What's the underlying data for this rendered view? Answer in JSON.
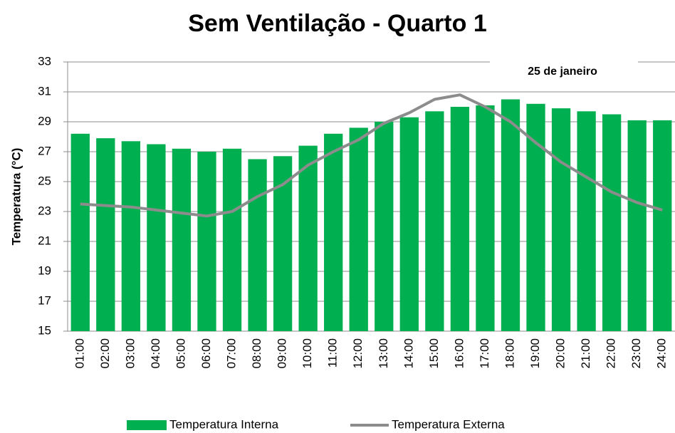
{
  "chart_data": {
    "type": "bar_line",
    "title": "Sem Ventilação - Quarto 1",
    "y_label": "Temperatura (°C)",
    "annotation": "25 de janeiro",
    "categories": [
      "01:00",
      "02:00",
      "03:00",
      "04:00",
      "05:00",
      "06:00",
      "07:00",
      "08:00",
      "09:00",
      "10:00",
      "11:00",
      "12:00",
      "13:00",
      "14:00",
      "15:00",
      "16:00",
      "17:00",
      "18:00",
      "19:00",
      "20:00",
      "21:00",
      "22:00",
      "23:00",
      "24:00"
    ],
    "series": [
      {
        "name": "Temperatura Interna",
        "type": "bar",
        "color": "#00b050",
        "values": [
          28.2,
          27.9,
          27.7,
          27.5,
          27.2,
          27.0,
          27.2,
          26.5,
          26.7,
          27.4,
          28.2,
          28.6,
          29.0,
          29.3,
          29.7,
          30.0,
          30.1,
          30.5,
          30.2,
          29.9,
          29.7,
          29.5,
          29.1,
          29.1
        ]
      },
      {
        "name": "Temperatura Externa",
        "type": "line",
        "color": "#8c8c8c",
        "values": [
          23.5,
          23.4,
          23.3,
          23.1,
          22.9,
          22.7,
          23.0,
          24.0,
          24.8,
          26.1,
          27.0,
          27.8,
          28.9,
          29.6,
          30.5,
          30.8,
          30.0,
          29.0,
          27.6,
          26.3,
          25.3,
          24.3,
          23.6,
          23.1
        ]
      }
    ],
    "ylim": [
      15,
      33
    ],
    "yticks": [
      15,
      17,
      19,
      21,
      23,
      25,
      27,
      29,
      31,
      33
    ],
    "grid": true,
    "legend": "bottom"
  }
}
